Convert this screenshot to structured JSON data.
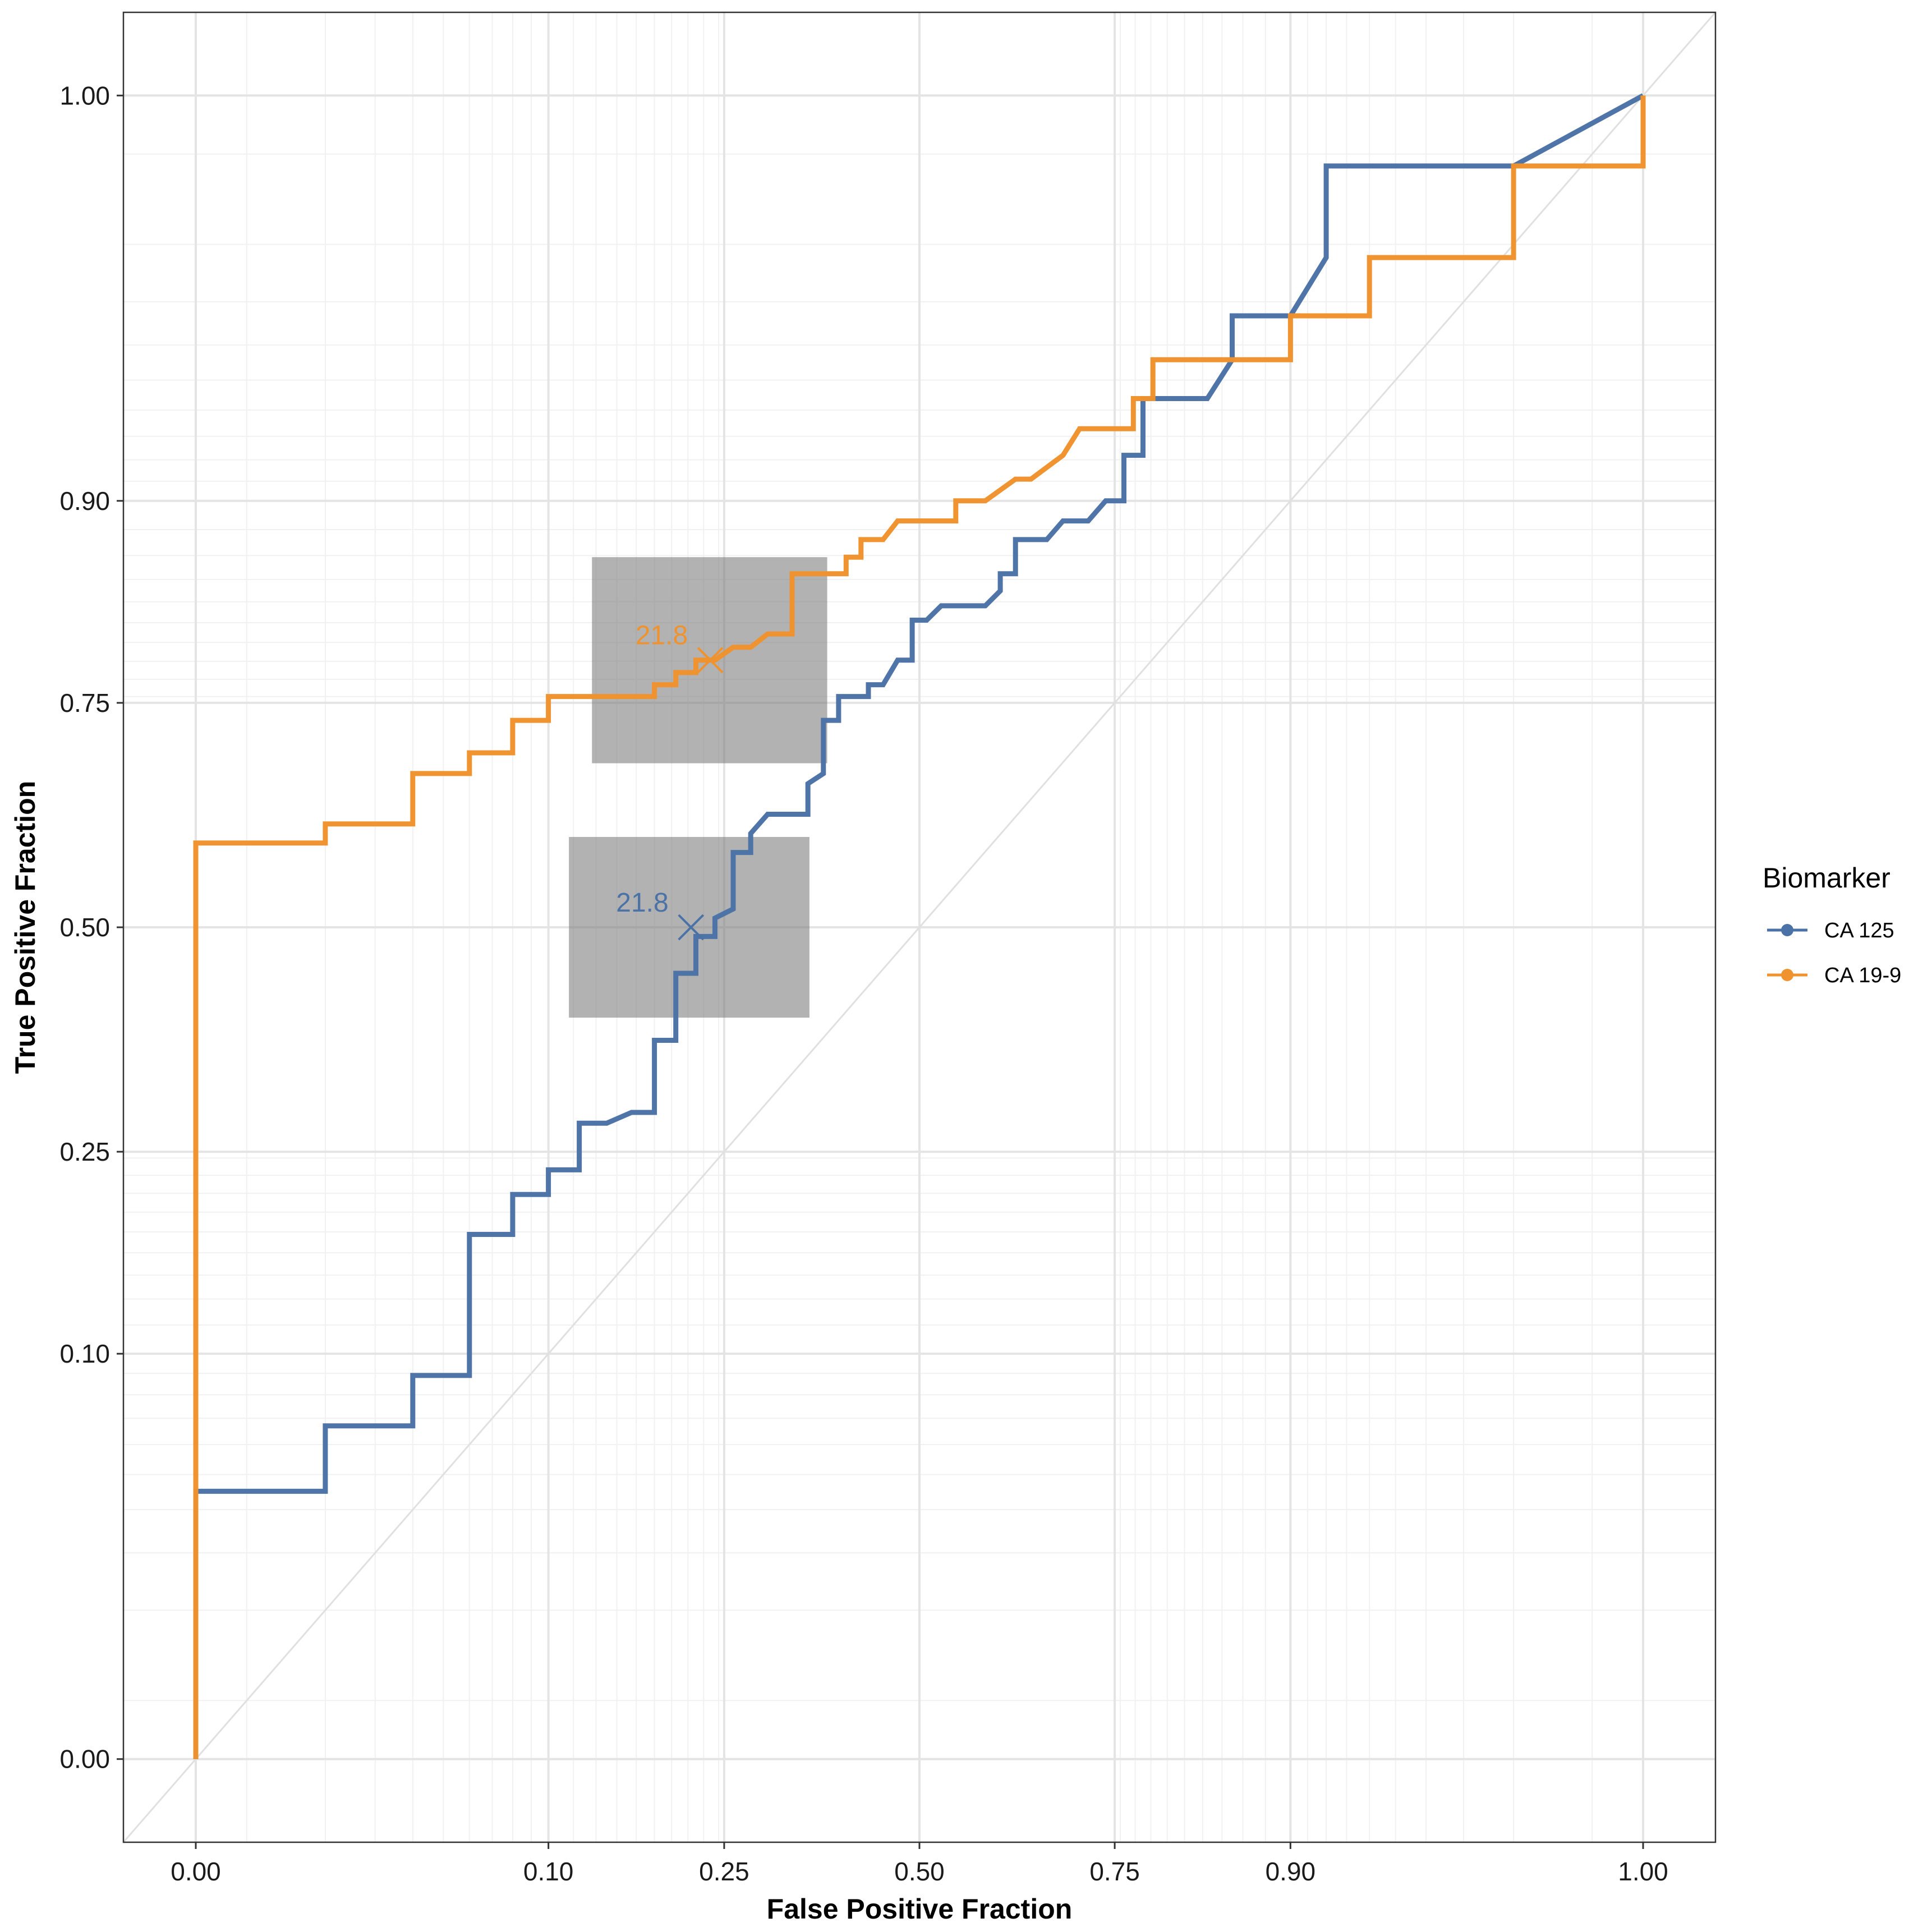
{
  "chart_data": {
    "type": "line",
    "subtype": "roc-curve",
    "title": "",
    "xlabel": "False Positive Fraction",
    "ylabel": "True Positive Fraction",
    "xlim": [
      -0.05,
      1.05
    ],
    "ylim": [
      -0.05,
      1.05
    ],
    "x_ticks": [
      {
        "value": 0.0,
        "label": "0.00"
      },
      {
        "value": 0.1,
        "label": "0.10"
      },
      {
        "value": 0.25,
        "label": "0.25"
      },
      {
        "value": 0.5,
        "label": "0.50"
      },
      {
        "value": 0.75,
        "label": "0.75"
      },
      {
        "value": 0.9,
        "label": "0.90"
      },
      {
        "value": 1.0,
        "label": "1.00"
      }
    ],
    "y_ticks": [
      {
        "value": 0.0,
        "label": "0.00"
      },
      {
        "value": 0.1,
        "label": "0.10"
      },
      {
        "value": 0.25,
        "label": "0.25"
      },
      {
        "value": 0.5,
        "label": "0.50"
      },
      {
        "value": 0.75,
        "label": "0.75"
      },
      {
        "value": 0.9,
        "label": "0.90"
      },
      {
        "value": 1.0,
        "label": "1.00"
      }
    ],
    "grid": true,
    "diagonal_reference": true,
    "legend": {
      "title": "Biomarker",
      "position": "right"
    },
    "series": [
      {
        "name": "CA 125",
        "color": "#4B72A6",
        "cutoff": {
          "label": "21.8",
          "fpf": 0.215,
          "tpf": 0.5,
          "fpf_ci": [
            0.113,
            0.352
          ],
          "tpf_ci": [
            0.393,
            0.607
          ]
        },
        "points": [
          [
            0,
            0
          ],
          [
            0,
            0.045
          ],
          [
            0.02,
            0.045
          ],
          [
            0.02,
            0.067
          ],
          [
            0.04,
            0.067
          ],
          [
            0.04,
            0.089
          ],
          [
            0.06,
            0.089
          ],
          [
            0.06,
            0.178
          ],
          [
            0.08,
            0.178
          ],
          [
            0.08,
            0.211
          ],
          [
            0.1,
            0.211
          ],
          [
            0.1,
            0.233
          ],
          [
            0.12,
            0.233
          ],
          [
            0.12,
            0.278
          ],
          [
            0.14,
            0.278
          ],
          [
            0.16,
            0.289
          ],
          [
            0.18,
            0.289
          ],
          [
            0.18,
            0.367
          ],
          [
            0.2,
            0.367
          ],
          [
            0.2,
            0.445
          ],
          [
            0.22,
            0.445
          ],
          [
            0.22,
            0.489
          ],
          [
            0.24,
            0.489
          ],
          [
            0.24,
            0.511
          ],
          [
            0.26,
            0.522
          ],
          [
            0.26,
            0.589
          ],
          [
            0.28,
            0.589
          ],
          [
            0.28,
            0.611
          ],
          [
            0.3,
            0.633
          ],
          [
            0.35,
            0.633
          ],
          [
            0.35,
            0.667
          ],
          [
            0.37,
            0.678
          ],
          [
            0.37,
            0.733
          ],
          [
            0.39,
            0.733
          ],
          [
            0.39,
            0.756
          ],
          [
            0.41,
            0.756
          ],
          [
            0.43,
            0.756
          ],
          [
            0.43,
            0.767
          ],
          [
            0.45,
            0.767
          ],
          [
            0.47,
            0.789
          ],
          [
            0.49,
            0.789
          ],
          [
            0.49,
            0.822
          ],
          [
            0.51,
            0.822
          ],
          [
            0.53,
            0.833
          ],
          [
            0.59,
            0.833
          ],
          [
            0.61,
            0.844
          ],
          [
            0.61,
            0.856
          ],
          [
            0.63,
            0.856
          ],
          [
            0.63,
            0.878
          ],
          [
            0.67,
            0.878
          ],
          [
            0.69,
            0.889
          ],
          [
            0.72,
            0.889
          ],
          [
            0.74,
            0.9
          ],
          [
            0.76,
            0.9
          ],
          [
            0.76,
            0.922
          ],
          [
            0.78,
            0.922
          ],
          [
            0.78,
            0.944
          ],
          [
            0.84,
            0.944
          ],
          [
            0.86,
            0.956
          ],
          [
            0.86,
            0.967
          ],
          [
            0.9,
            0.967
          ],
          [
            0.92,
            0.978
          ],
          [
            0.92,
            0.989
          ],
          [
            0.98,
            0.989
          ],
          [
            1.0,
            1.0
          ]
        ]
      },
      {
        "name": "CA 19-9",
        "color": "#F0922D",
        "cutoff": {
          "label": "21.8",
          "fpf": 0.235,
          "tpf": 0.789,
          "fpf_ci": [
            0.129,
            0.375
          ],
          "tpf_ci": [
            0.689,
            0.867
          ]
        },
        "points": [
          [
            0,
            0
          ],
          [
            0,
            0.6
          ],
          [
            0.02,
            0.6
          ],
          [
            0.02,
            0.622
          ],
          [
            0.04,
            0.622
          ],
          [
            0.04,
            0.678
          ],
          [
            0.06,
            0.678
          ],
          [
            0.06,
            0.7
          ],
          [
            0.08,
            0.7
          ],
          [
            0.08,
            0.733
          ],
          [
            0.1,
            0.733
          ],
          [
            0.1,
            0.756
          ],
          [
            0.16,
            0.756
          ],
          [
            0.18,
            0.756
          ],
          [
            0.18,
            0.767
          ],
          [
            0.2,
            0.767
          ],
          [
            0.2,
            0.778
          ],
          [
            0.22,
            0.778
          ],
          [
            0.22,
            0.789
          ],
          [
            0.24,
            0.789
          ],
          [
            0.26,
            0.8
          ],
          [
            0.28,
            0.8
          ],
          [
            0.3,
            0.811
          ],
          [
            0.33,
            0.811
          ],
          [
            0.33,
            0.856
          ],
          [
            0.4,
            0.856
          ],
          [
            0.4,
            0.867
          ],
          [
            0.42,
            0.867
          ],
          [
            0.42,
            0.878
          ],
          [
            0.45,
            0.878
          ],
          [
            0.47,
            0.889
          ],
          [
            0.55,
            0.889
          ],
          [
            0.55,
            0.9
          ],
          [
            0.59,
            0.9
          ],
          [
            0.63,
            0.911
          ],
          [
            0.65,
            0.911
          ],
          [
            0.69,
            0.922
          ],
          [
            0.71,
            0.933
          ],
          [
            0.77,
            0.933
          ],
          [
            0.77,
            0.944
          ],
          [
            0.79,
            0.944
          ],
          [
            0.79,
            0.956
          ],
          [
            0.9,
            0.956
          ],
          [
            0.9,
            0.967
          ],
          [
            0.94,
            0.967
          ],
          [
            0.94,
            0.978
          ],
          [
            0.98,
            0.978
          ],
          [
            0.98,
            0.989
          ],
          [
            1.0,
            0.989
          ],
          [
            1.0,
            1.0
          ]
        ]
      }
    ]
  }
}
